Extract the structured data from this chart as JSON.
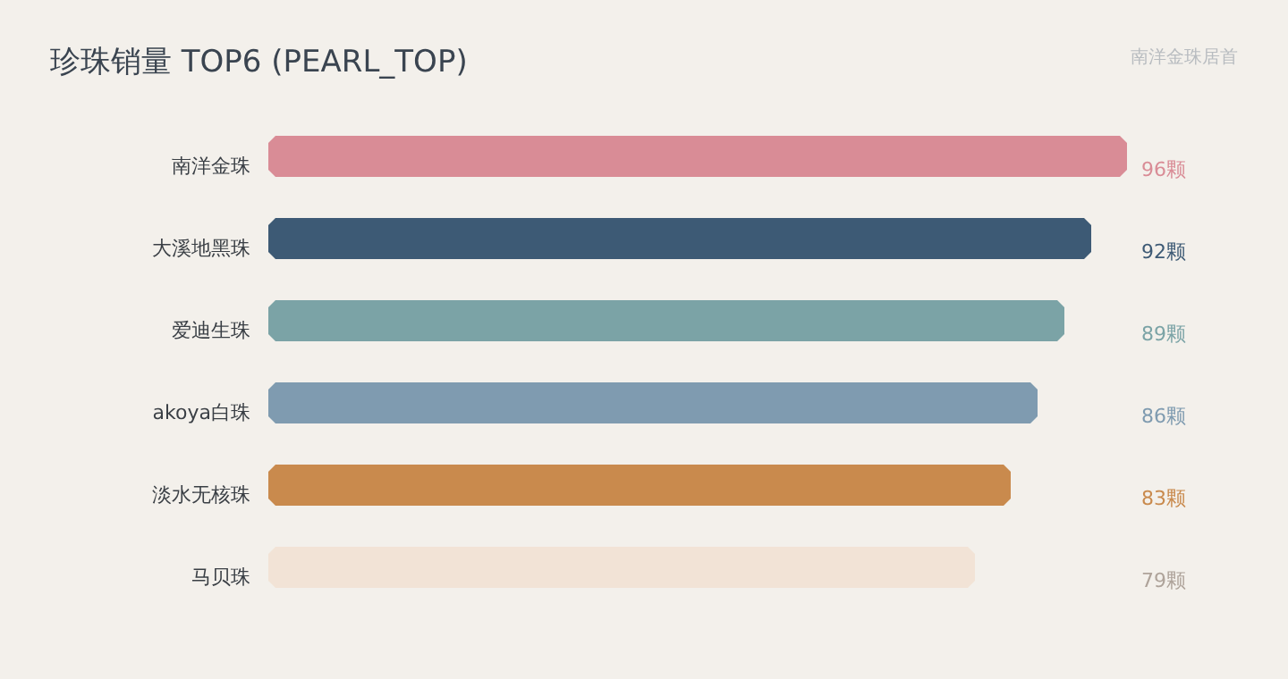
{
  "chart_data": {
    "type": "bar",
    "orientation": "horizontal",
    "title": "珍珠销量 TOP6 (PEARL_TOP)",
    "annotations": [
      "南洋金珠居首"
    ],
    "categories": [
      "南洋金珠",
      "大溪地黑珠",
      "爱迪生珠",
      "akoya白珠",
      "淡水无核珠",
      "马贝珠"
    ],
    "values": [
      96,
      92,
      89,
      86,
      83,
      79
    ],
    "value_labels": [
      "96颗",
      "92颗",
      "89颗",
      "86颗",
      "83颗",
      "79颗"
    ],
    "colors": [
      "#d98c96",
      "#3d5a75",
      "#7ba3a6",
      "#7f9bb0",
      "#c98a4d",
      "#f2e3d6"
    ]
  }
}
